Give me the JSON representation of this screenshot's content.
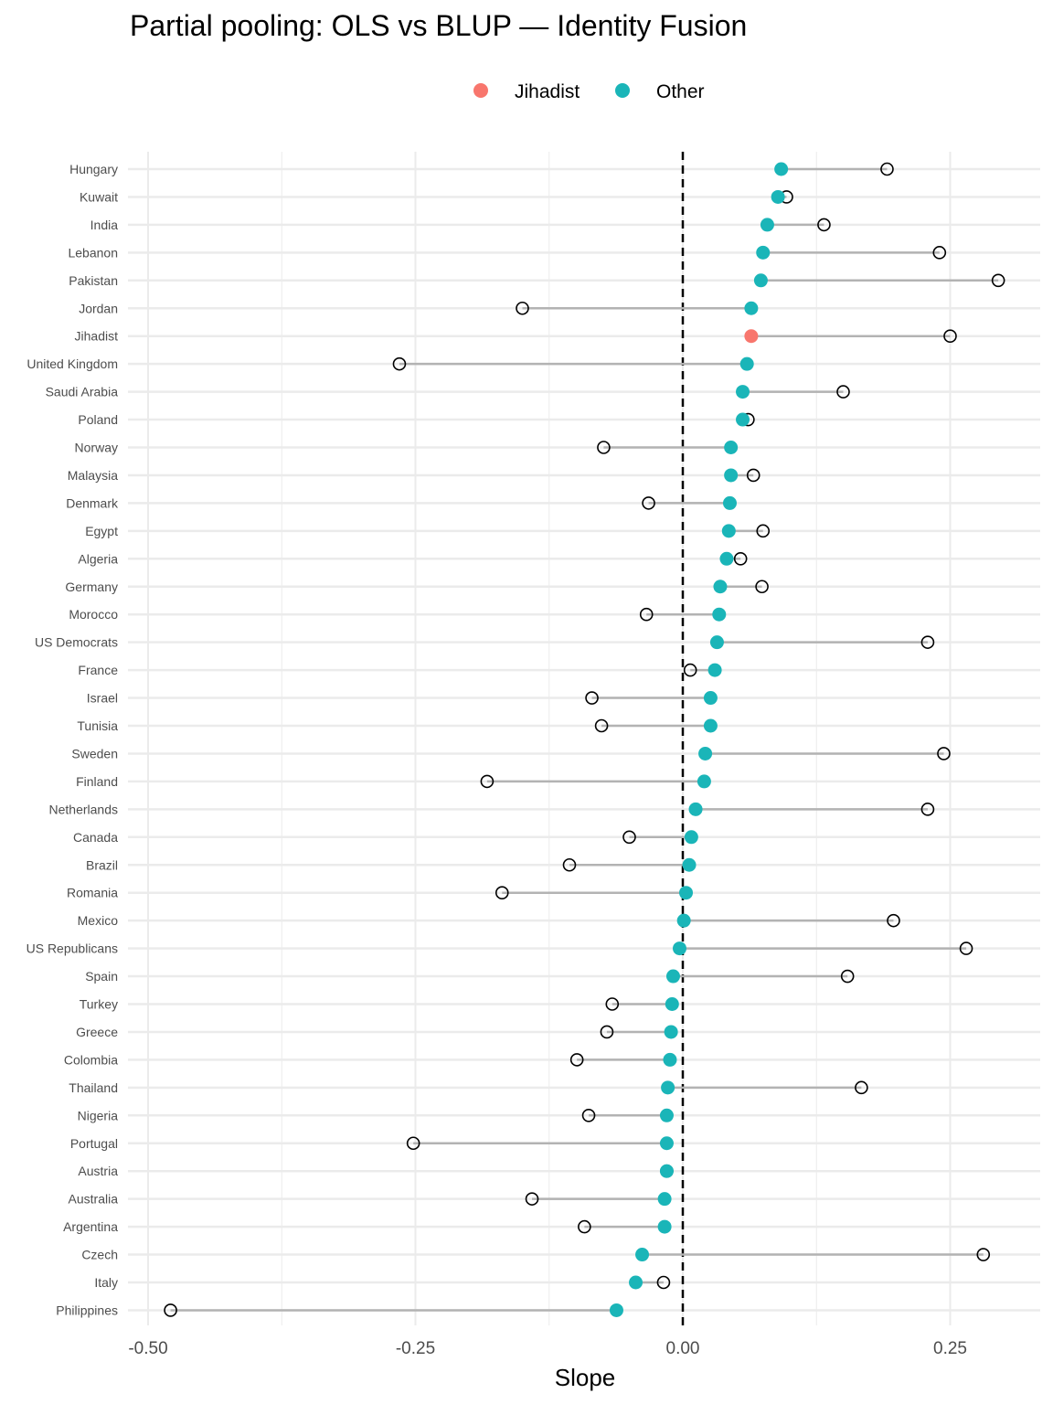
{
  "chart_data": {
    "type": "dumbbell",
    "title": "Partial pooling: OLS vs BLUP — Identity Fusion",
    "xlabel": "Slope",
    "ylabel": "",
    "xlim": [
      -0.52,
      0.335
    ],
    "xticks": [
      -0.5,
      -0.25,
      0.0,
      0.25
    ],
    "xtick_labels": [
      "-0.50",
      "-0.25",
      "0.00",
      "0.25"
    ],
    "reference_line": 0.0,
    "grid": true,
    "legend": {
      "position": "top",
      "entries": [
        {
          "label": "Jihadist",
          "color": "#F8766D"
        },
        {
          "label": "Other",
          "color": "#1AB5B8"
        }
      ]
    },
    "colors": {
      "ols_marker_stroke": "#000000",
      "segment": "#b3b3b3",
      "grid": "#ebebeb",
      "reference": "#000000"
    },
    "series": [
      {
        "name": "BLUP",
        "marker": "filled-circle"
      },
      {
        "name": "OLS",
        "marker": "open-circle"
      }
    ],
    "rows": [
      {
        "label": "Hungary",
        "group": "Other",
        "blup": 0.092,
        "ols": 0.191
      },
      {
        "label": "Kuwait",
        "group": "Other",
        "blup": 0.089,
        "ols": 0.097
      },
      {
        "label": "India",
        "group": "Other",
        "blup": 0.079,
        "ols": 0.132
      },
      {
        "label": "Lebanon",
        "group": "Other",
        "blup": 0.075,
        "ols": 0.24
      },
      {
        "label": "Pakistan",
        "group": "Other",
        "blup": 0.073,
        "ols": 0.295
      },
      {
        "label": "Jordan",
        "group": "Other",
        "blup": 0.064,
        "ols": -0.15
      },
      {
        "label": "Jihadist",
        "group": "Jihadist",
        "blup": 0.064,
        "ols": 0.25
      },
      {
        "label": "United Kingdom",
        "group": "Other",
        "blup": 0.06,
        "ols": -0.265
      },
      {
        "label": "Saudi Arabia",
        "group": "Other",
        "blup": 0.056,
        "ols": 0.15
      },
      {
        "label": "Poland",
        "group": "Other",
        "blup": 0.056,
        "ols": 0.061
      },
      {
        "label": "Norway",
        "group": "Other",
        "blup": 0.045,
        "ols": -0.074
      },
      {
        "label": "Malaysia",
        "group": "Other",
        "blup": 0.045,
        "ols": 0.066
      },
      {
        "label": "Denmark",
        "group": "Other",
        "blup": 0.044,
        "ols": -0.032
      },
      {
        "label": "Egypt",
        "group": "Other",
        "blup": 0.043,
        "ols": 0.075
      },
      {
        "label": "Algeria",
        "group": "Other",
        "blup": 0.041,
        "ols": 0.054
      },
      {
        "label": "Germany",
        "group": "Other",
        "blup": 0.035,
        "ols": 0.074
      },
      {
        "label": "Morocco",
        "group": "Other",
        "blup": 0.034,
        "ols": -0.034
      },
      {
        "label": "US Democrats",
        "group": "Other",
        "blup": 0.032,
        "ols": 0.229
      },
      {
        "label": "France",
        "group": "Other",
        "blup": 0.03,
        "ols": 0.007
      },
      {
        "label": "Israel",
        "group": "Other",
        "blup": 0.026,
        "ols": -0.085
      },
      {
        "label": "Tunisia",
        "group": "Other",
        "blup": 0.026,
        "ols": -0.076
      },
      {
        "label": "Sweden",
        "group": "Other",
        "blup": 0.021,
        "ols": 0.244
      },
      {
        "label": "Finland",
        "group": "Other",
        "blup": 0.02,
        "ols": -0.183
      },
      {
        "label": "Netherlands",
        "group": "Other",
        "blup": 0.012,
        "ols": 0.229
      },
      {
        "label": "Canada",
        "group": "Other",
        "blup": 0.008,
        "ols": -0.05
      },
      {
        "label": "Brazil",
        "group": "Other",
        "blup": 0.006,
        "ols": -0.106
      },
      {
        "label": "Romania",
        "group": "Other",
        "blup": 0.003,
        "ols": -0.169
      },
      {
        "label": "Mexico",
        "group": "Other",
        "blup": 0.001,
        "ols": 0.197
      },
      {
        "label": "US Republicans",
        "group": "Other",
        "blup": -0.003,
        "ols": 0.265
      },
      {
        "label": "Spain",
        "group": "Other",
        "blup": -0.009,
        "ols": 0.154
      },
      {
        "label": "Turkey",
        "group": "Other",
        "blup": -0.01,
        "ols": -0.066
      },
      {
        "label": "Greece",
        "group": "Other",
        "blup": -0.011,
        "ols": -0.071
      },
      {
        "label": "Colombia",
        "group": "Other",
        "blup": -0.012,
        "ols": -0.099
      },
      {
        "label": "Thailand",
        "group": "Other",
        "blup": -0.014,
        "ols": 0.167
      },
      {
        "label": "Nigeria",
        "group": "Other",
        "blup": -0.015,
        "ols": -0.088
      },
      {
        "label": "Portugal",
        "group": "Other",
        "blup": -0.015,
        "ols": -0.252
      },
      {
        "label": "Austria",
        "group": "Other",
        "blup": -0.015,
        "ols": -0.015
      },
      {
        "label": "Australia",
        "group": "Other",
        "blup": -0.017,
        "ols": -0.141
      },
      {
        "label": "Argentina",
        "group": "Other",
        "blup": -0.017,
        "ols": -0.092
      },
      {
        "label": "Czech",
        "group": "Other",
        "blup": -0.038,
        "ols": 0.281
      },
      {
        "label": "Italy",
        "group": "Other",
        "blup": -0.044,
        "ols": -0.018
      },
      {
        "label": "Philippines",
        "group": "Other",
        "blup": -0.062,
        "ols": -0.479
      }
    ]
  }
}
